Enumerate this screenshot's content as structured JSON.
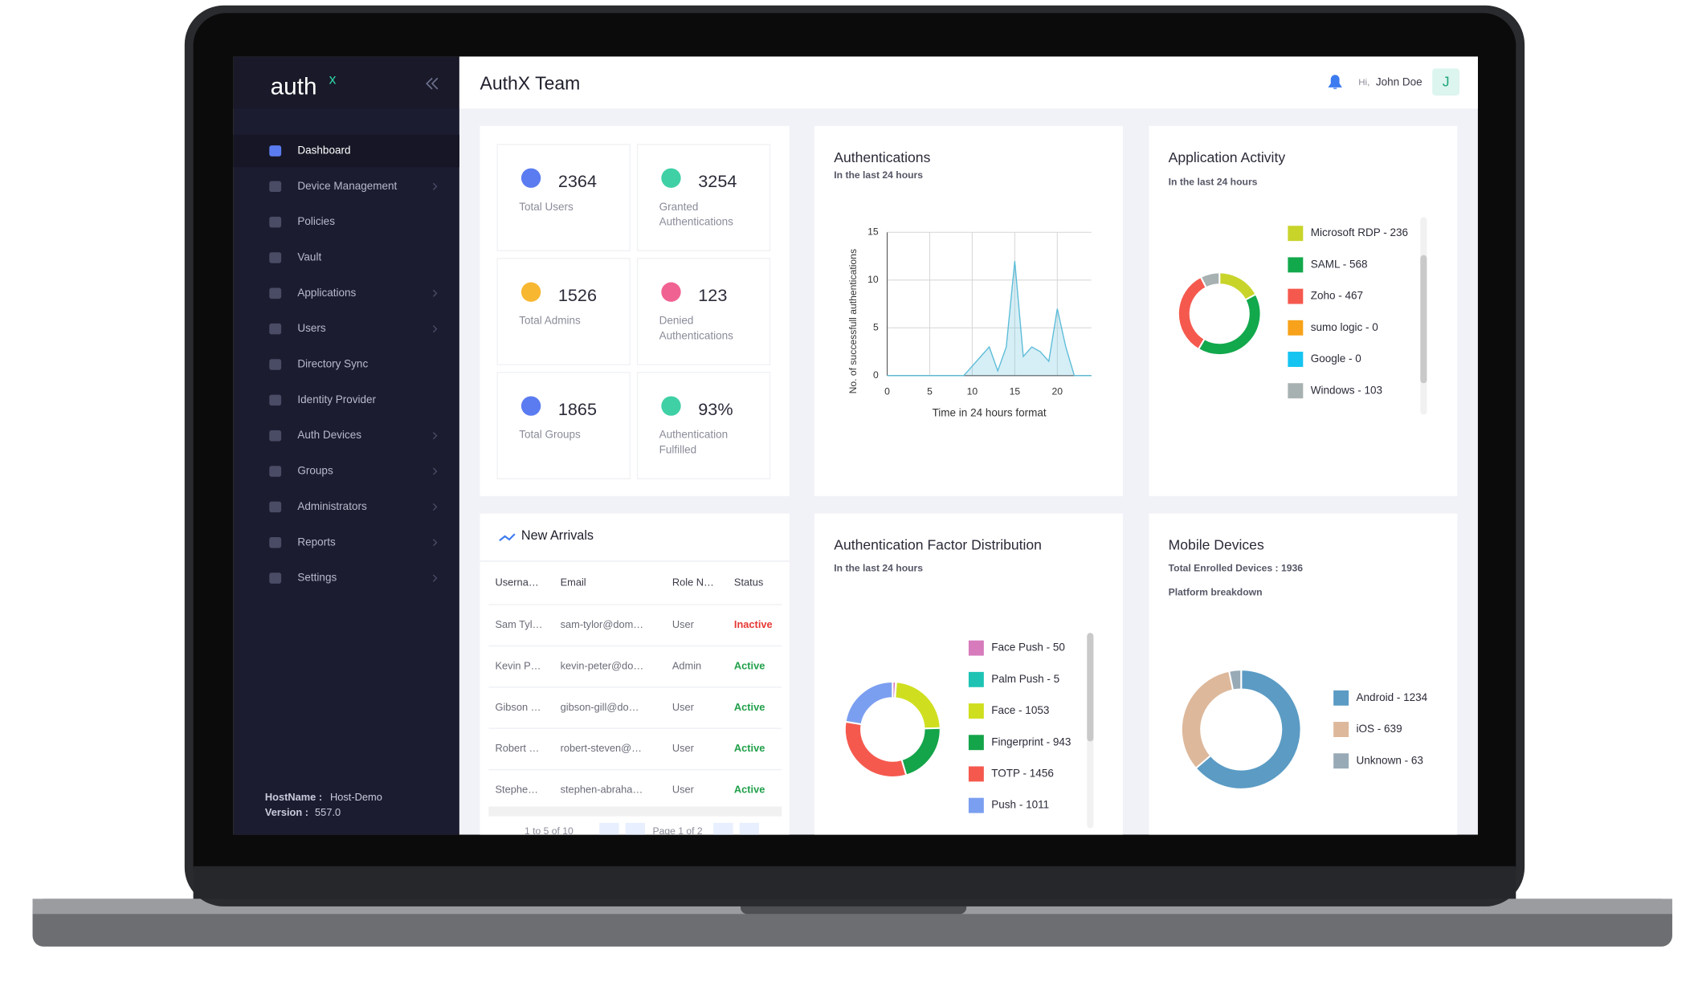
{
  "sidebar": {
    "logo": "auth",
    "logo_sup": "x",
    "menu": [
      {
        "label": "Dashboard",
        "selected": true,
        "submenu": false
      },
      {
        "label": "Device Management",
        "selected": false,
        "submenu": true
      },
      {
        "label": "Policies",
        "selected": false,
        "submenu": false
      },
      {
        "label": "Vault",
        "selected": false,
        "submenu": false
      },
      {
        "label": "Applications",
        "selected": false,
        "submenu": true
      },
      {
        "label": "Users",
        "selected": false,
        "submenu": true
      },
      {
        "label": "Directory Sync",
        "selected": false,
        "submenu": false
      },
      {
        "label": "Identity Provider",
        "selected": false,
        "submenu": false
      },
      {
        "label": "Auth Devices",
        "selected": false,
        "submenu": true
      },
      {
        "label": "Groups",
        "selected": false,
        "submenu": true
      },
      {
        "label": "Administrators",
        "selected": false,
        "submenu": true
      },
      {
        "label": "Reports",
        "selected": false,
        "submenu": true
      },
      {
        "label": "Settings",
        "selected": false,
        "submenu": true
      }
    ],
    "hostname_label": "HostName :",
    "hostname": "Host-Demo",
    "version_label": "Version :",
    "version": "557.0"
  },
  "header": {
    "title": "AuthX Team",
    "greeting": "Hi,",
    "user": "John Doe",
    "avatar": "J"
  },
  "stats": [
    {
      "value": 2364,
      "label": [
        "Total Users"
      ],
      "icon_color": "#5b7cf0"
    },
    {
      "value": 3254,
      "label": [
        "Granted",
        "Authentications"
      ],
      "icon_color": "#3fd0a6"
    },
    {
      "value": 1526,
      "label": [
        "Total Admins"
      ],
      "icon_color": "#f7b731"
    },
    {
      "value": 123,
      "label": [
        "Denied",
        "Authentications"
      ],
      "icon_color": "#f06292"
    },
    {
      "value": 1865,
      "label": [
        "Total Groups"
      ],
      "icon_color": "#5b7cf0"
    },
    {
      "value": 93,
      "value_label": "93%",
      "label": [
        "Authentication",
        "Fulfilled"
      ],
      "icon_color": "#3fd0a6"
    }
  ],
  "new_arrivals": {
    "title": "New Arrivals",
    "columns": [
      "Userna…",
      "Email",
      "Role N…",
      "Status"
    ],
    "rows": [
      [
        "Sam Tyl…",
        "sam-tylor@dom…",
        "User",
        "Inactive"
      ],
      [
        "Kevin P…",
        "kevin-peter@do…",
        "Admin",
        "Active"
      ],
      [
        "Gibson …",
        "gibson-gill@do…",
        "User",
        "Active"
      ],
      [
        "Robert …",
        "robert-steven@…",
        "User",
        "Active"
      ],
      [
        "Stephe…",
        "stephen-abraha…",
        "User",
        "Active"
      ]
    ],
    "status_colors": [
      "#e53935",
      "#22a04b",
      "#22a04b",
      "#22a04b",
      "#22a04b"
    ],
    "pagination": {
      "range": "1 to 5 of 10",
      "page": "Page 1 of 2"
    }
  },
  "chart_data": [
    {
      "type": "line",
      "title": "Authentications",
      "subtitle": "In the last 24 hours",
      "x_label": "Time in 24 hours format",
      "y_label": "No. of successfull authentications",
      "x": [
        0,
        1,
        2,
        3,
        4,
        5,
        6,
        7,
        8,
        9,
        10,
        11,
        12,
        13,
        14,
        15,
        16,
        17,
        18,
        19,
        20,
        21,
        22,
        23,
        24
      ],
      "series": [
        {
          "name": "Authentications",
          "color": "#5bbcd8",
          "values": [
            0,
            0,
            0,
            0,
            0,
            0,
            0,
            0,
            0,
            0,
            1,
            2,
            3,
            0.5,
            3,
            12,
            2,
            3,
            2.5,
            1.5,
            7,
            3,
            0,
            0,
            0
          ]
        }
      ],
      "xlim": [
        0,
        24
      ],
      "ylim": [
        0,
        15
      ],
      "xticks": [
        0,
        5,
        10,
        15,
        20
      ],
      "yticks": [
        0,
        5,
        10,
        15
      ],
      "grid": true
    },
    {
      "type": "donut",
      "title": "Application Activity",
      "subtitle": "In the last 24 hours",
      "legend": [
        "Microsoft RDP - 236",
        "SAML - 568",
        "Zoho - 467",
        "sumo logic - 0",
        "Google - 0",
        "Windows - 103"
      ],
      "values": [
        236,
        568,
        467,
        0,
        0,
        103
      ],
      "colors": [
        "#c8d42a",
        "#12a84c",
        "#f5594e",
        "#f7a21a",
        "#15c4f0",
        "#a8b1b1"
      ]
    },
    {
      "type": "donut",
      "title": "Authentication Factor Distribution",
      "subtitle": "In the last 24 hours",
      "legend": [
        "Face Push - 50",
        "Palm Push - 5",
        "Face - 1053",
        "Fingerprint - 943",
        "TOTP - 1456",
        "Push - 1011"
      ],
      "values": [
        50,
        5,
        1053,
        943,
        1456,
        1011
      ],
      "colors": [
        "#d77bbd",
        "#1ec3b4",
        "#cfdf1f",
        "#14a44a",
        "#f5594e",
        "#7b9ff0"
      ]
    },
    {
      "type": "donut",
      "title": "Mobile Devices",
      "subtitle": "Total Enrolled Devices : 1936",
      "subtitle2": "Platform breakdown",
      "legend": [
        "Android - 1234",
        "iOS - 639",
        "Unknown - 63"
      ],
      "values": [
        1234,
        639,
        63
      ],
      "colors": [
        "#5b9bc4",
        "#ddb89b",
        "#98aab6"
      ]
    }
  ]
}
